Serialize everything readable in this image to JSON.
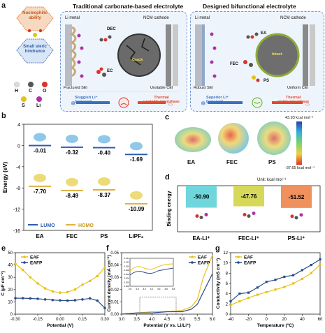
{
  "panel_a": {
    "label": "a",
    "title_left": "Traditional carbonate-based electrolyte",
    "title_right": "Designed bifunctional electrolyte",
    "concept_top": [
      "Nucleophilic",
      "ability"
    ],
    "concept_bottom": [
      "Small steric",
      "hindrance"
    ],
    "legend_atoms": [
      "H",
      "C",
      "O",
      "S",
      "Li"
    ],
    "left": {
      "li_metal": "Li metal",
      "cathode": "NCM cathode",
      "dec": "DEC",
      "ec": "EC",
      "crack": "Crack",
      "sei": "Fractured SEI",
      "cei": "Unstable CEI",
      "transport": [
        "Sluggish Li⁺",
        "transport"
      ],
      "thermal": [
        "Thermal",
        "unstable interphase"
      ]
    },
    "right": {
      "li_metal": "Li metal",
      "cathode": "NCM cathode",
      "ea": "EA",
      "fec": "FEC",
      "ps": "PS",
      "intact": "Intact",
      "sei": "Robust SEI",
      "cei": "Uniform CEI",
      "transport": [
        "Superior Li⁺",
        "transport"
      ],
      "thermal": [
        "Thermal",
        "stable interphase"
      ]
    }
  },
  "panel_b": {
    "label": "b",
    "ylabel": "Energy (eV)",
    "legend": [
      "LUMO",
      "HOMO"
    ],
    "colors": {
      "lumo": "#2a5db0",
      "homo": "#e0b040"
    },
    "chart_data": {
      "type": "energy-level",
      "categories": [
        "EA",
        "FEC",
        "PS",
        "LiPF₆"
      ],
      "series": [
        {
          "name": "LUMO",
          "values": [
            -0.01,
            -0.32,
            -0.4,
            -1.69
          ]
        },
        {
          "name": "HOMO",
          "values": [
            -7.7,
            -8.49,
            -8.37,
            -10.99
          ]
        }
      ],
      "value_labels_lumo": [
        "-0.01",
        "-0.32",
        "-0.40",
        "-1.69"
      ],
      "value_labels_homo": [
        "-7.70",
        "-8.49",
        "-8.37",
        "-10.99"
      ],
      "ylim": [
        -16,
        4
      ],
      "yticks": [
        "4",
        "0",
        "-4",
        "-8",
        "-12",
        "-16"
      ]
    }
  },
  "panel_c": {
    "label": "c",
    "molecules": [
      "EA",
      "FEC",
      "PS"
    ],
    "scale_max": "43.93 kcal mol⁻¹",
    "scale_min": "-37.65 kcal mol⁻¹"
  },
  "panel_d": {
    "label": "d",
    "unit": "Unit: kcal mol⁻¹",
    "ylabel": "Binding energy",
    "chart_data": {
      "type": "bar",
      "categories": [
        "EA-Li⁺",
        "FEC-Li⁺",
        "PS-Li⁺"
      ],
      "values": [
        -50.9,
        -47.76,
        -51.52
      ],
      "value_labels": [
        "-50.90",
        "-47.76",
        "-51.52"
      ],
      "colors": [
        "#6fd6dc",
        "#d6d85a",
        "#f0905c"
      ]
    }
  },
  "panel_e": {
    "label": "e",
    "chart_data": {
      "type": "scatter",
      "xlabel": "Potential (V)",
      "ylabel": "C (μF cm⁻²)",
      "xlim": [
        -0.3,
        0.3
      ],
      "ylim": [
        0,
        50
      ],
      "xticks": [
        "-0.30",
        "-0.15",
        "0.00",
        "0.15",
        "0.30"
      ],
      "yticks": [
        "0",
        "10",
        "20",
        "30",
        "40",
        "50"
      ],
      "series": [
        {
          "name": "EAF",
          "color": "#e8c21a",
          "x": [
            -0.3,
            -0.25,
            -0.2,
            -0.15,
            -0.1,
            -0.05,
            0.0,
            0.05,
            0.1,
            0.15,
            0.2,
            0.25,
            0.3
          ],
          "values": [
            41,
            36,
            30,
            25,
            21,
            18.5,
            17.5,
            18,
            20,
            24,
            27,
            31,
            38
          ]
        },
        {
          "name": "EAFP",
          "color": "#2a4c8c",
          "x": [
            -0.3,
            -0.25,
            -0.2,
            -0.15,
            -0.1,
            -0.05,
            0.0,
            0.05,
            0.1,
            0.15,
            0.2,
            0.25,
            0.3
          ],
          "values": [
            13,
            13,
            12.8,
            12.5,
            12,
            11.5,
            11.2,
            11,
            11.3,
            12,
            12.8,
            11,
            5
          ]
        }
      ]
    }
  },
  "panel_f": {
    "label": "f",
    "chart_data": {
      "type": "line",
      "xlabel": "Potential (V vs. Li/Li⁺)",
      "ylabel": "Current density (mA cm⁻²)",
      "xlim": [
        3.0,
        6.0
      ],
      "ylim": [
        0,
        0.05
      ],
      "xticks": [
        "3.0",
        "3.5",
        "4.0",
        "4.5",
        "5.0",
        "5.5",
        "6.0"
      ],
      "yticks": [
        "0.00",
        "0.01",
        "0.02",
        "0.03",
        "0.04",
        "0.05"
      ],
      "series": [
        {
          "name": "EAF",
          "color": "#e8c21a",
          "x": [
            3.0,
            3.5,
            4.0,
            4.5,
            5.0,
            5.3,
            5.5,
            5.7,
            6.0
          ],
          "values": [
            0,
            0.001,
            0.002,
            0.002,
            0.003,
            0.006,
            0.012,
            0.03,
            0.048
          ]
        },
        {
          "name": "EAFP",
          "color": "#2a4c8c",
          "x": [
            3.0,
            3.5,
            4.0,
            4.5,
            5.0,
            5.3,
            5.5,
            5.7,
            6.0
          ],
          "values": [
            0,
            0.001,
            0.001,
            0.002,
            0.002,
            0.004,
            0.008,
            0.018,
            0.033
          ]
        }
      ],
      "inset": {
        "xticks": [
          "3.6",
          "3.8",
          "4.0",
          "4.2",
          "4.4",
          "4.6",
          "4.8"
        ],
        "yticks": [
          "0.000",
          "0.002",
          "0.004",
          "0.006",
          "0.008",
          "0.010",
          "0.012",
          "0.014"
        ]
      }
    }
  },
  "panel_g": {
    "label": "g",
    "chart_data": {
      "type": "line",
      "xlabel": "Temperature (°C)",
      "ylabel": "Conductivity (mS cm⁻¹)",
      "xlim": [
        -40,
        60
      ],
      "ylim": [
        0,
        12
      ],
      "xticks": [
        "-40",
        "-20",
        "0",
        "20",
        "40",
        "60"
      ],
      "yticks": [
        "0",
        "2",
        "4",
        "6",
        "8",
        "10",
        "12"
      ],
      "series": [
        {
          "name": "EAF",
          "color": "#e8c21a",
          "x": [
            -40,
            -30,
            -20,
            -10,
            0,
            10,
            20,
            30,
            40,
            50,
            60
          ],
          "values": [
            1.8,
            2.5,
            3.2,
            3.8,
            4.3,
            4.8,
            5.3,
            6.0,
            6.9,
            8.0,
            9.7
          ]
        },
        {
          "name": "EAFP",
          "color": "#2a4c8c",
          "x": [
            -40,
            -30,
            -20,
            -10,
            0,
            10,
            20,
            30,
            40,
            50,
            60
          ],
          "values": [
            2.5,
            4.0,
            4.2,
            5.2,
            6.3,
            6.7,
            7.3,
            7.6,
            8.6,
            9.6,
            10.7
          ]
        }
      ]
    }
  }
}
